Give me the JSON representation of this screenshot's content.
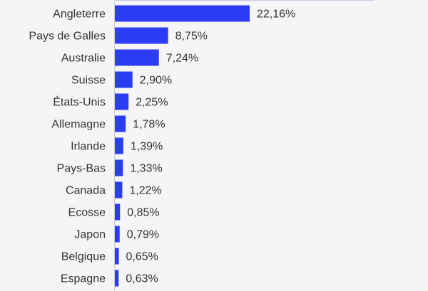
{
  "chart_data": {
    "type": "bar",
    "orientation": "horizontal",
    "title": "",
    "xlabel": "",
    "ylabel": "",
    "categories": [
      "Angleterre",
      "Pays de Galles",
      "Australie",
      "Suisse",
      "États-Unis",
      "Allemagne",
      "Irlande",
      "Pays-Bas",
      "Canada",
      "Ecosse",
      "Japon",
      "Belgique",
      "Espagne"
    ],
    "values": [
      22.16,
      8.75,
      7.24,
      2.9,
      2.25,
      1.78,
      1.39,
      1.33,
      1.22,
      0.85,
      0.79,
      0.65,
      0.63
    ],
    "value_labels": [
      "22,16%",
      "8,75%",
      "7,24%",
      "2,90%",
      "2,25%",
      "1,78%",
      "1,39%",
      "1,33%",
      "1,22%",
      "0,85%",
      "0,79%",
      "0,65%",
      "0,63%"
    ],
    "unit": "%",
    "grid": false,
    "legend": "none",
    "colors": {
      "bar": "#2b3cf5",
      "background": "#f5f5f7",
      "text": "#333333"
    }
  }
}
